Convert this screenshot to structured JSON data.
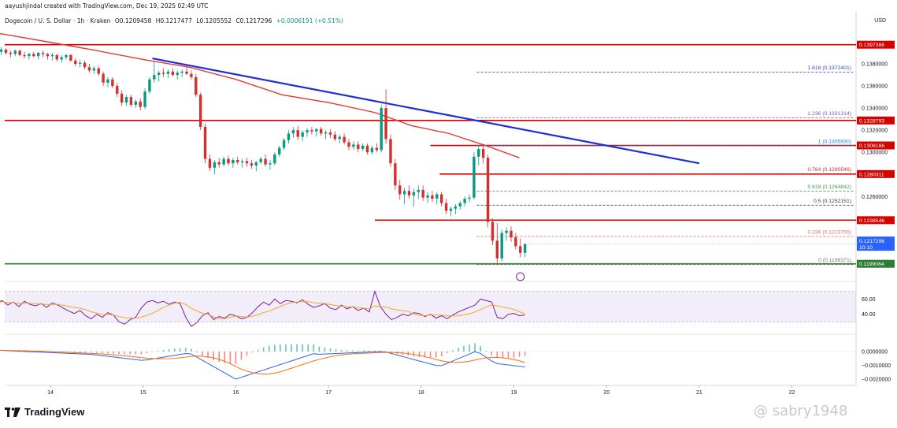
{
  "header": {
    "author": "aayushjindal created with TradingView.com, Dec 19, 2025 02:49 UTC",
    "symbol": "Dogecoin / U. S. Dollar · 1h · Kraken",
    "open": "O0.1209458",
    "high": "H0.1217477",
    "low": "L0.1205552",
    "close": "C0.1217296",
    "change": "+0.0006191 (+0.51%)"
  },
  "currency": "USD",
  "brand": "TradingView",
  "watermark": "@ sabry1948",
  "colors": {
    "bull": "#089981",
    "bear": "#d32f2f",
    "hline": "#d50000",
    "support": "#2e7d32",
    "trend": "#1e2fd6",
    "ma": "#e53935",
    "rsi": "#7b1fa2",
    "rsi_ma": "#f6a623",
    "macd": "#2962ff",
    "signal": "#ff6d00"
  },
  "chart_data": {
    "type": "candlestick",
    "price_ylim": [
      0.1186,
      0.1415
    ],
    "price_ticks": [
      "0.1380000",
      "0.1360000",
      "0.1340000",
      "0.1320000",
      "0.1300000",
      "0.1260000"
    ],
    "x_ticks": [
      "14",
      "15",
      "16",
      "17",
      "18",
      "19",
      "20",
      "21",
      "22"
    ],
    "h_lines": [
      {
        "label": "0.1397386",
        "value": 0.1397386
      },
      {
        "label": "0.1328793",
        "value": 0.1328793
      },
      {
        "label": "0.1306186",
        "value": 0.1306186
      },
      {
        "label": "0.1280311",
        "value": 0.1280311
      },
      {
        "label": "0.1238546",
        "value": 0.1238546
      }
    ],
    "support_line": {
      "label": "0.1199064",
      "value": 0.1199064
    },
    "last_price": {
      "label": "0.1217296",
      "countdown": "10:10",
      "value": 0.1217296
    },
    "fib_levels": [
      {
        "label": "1.618 (0.1372401)",
        "value": 0.1372401
      },
      {
        "label": "1.236 (0.1331314)",
        "value": 0.1331314
      },
      {
        "label": "1 (0.1305930)",
        "value": 0.130593
      },
      {
        "label": "0.764 (0.1280546)",
        "value": 0.1280546
      },
      {
        "label": "0.618 (0.1264842)",
        "value": 0.1264842
      },
      {
        "label": "0.5 (0.1252151)",
        "value": 0.1252151
      },
      {
        "label": "0.236 (0.1223755)",
        "value": 0.1223755
      },
      {
        "label": "0 (0.1198371)",
        "value": 0.1198371
      }
    ],
    "trendline": [
      [
        15.1,
        0.1385
      ],
      [
        21.0,
        0.129
      ]
    ],
    "rsi": {
      "ylim": [
        20,
        80
      ],
      "ticks": [
        "60.00",
        "40.00"
      ],
      "band": [
        30,
        70
      ]
    },
    "macd": {
      "ylim": [
        -0.0024,
        0.0008
      ],
      "ticks": [
        "0.0000000",
        "−0.0010000",
        "−0.0020000"
      ]
    },
    "candles": [
      [
        13.42,
        0.1392,
        0.1394,
        0.1389,
        0.1391
      ],
      [
        13.47,
        0.1391,
        0.1395,
        0.1388,
        0.1393
      ],
      [
        13.52,
        0.1393,
        0.1394,
        0.1388,
        0.139
      ],
      [
        13.57,
        0.139,
        0.1392,
        0.1386,
        0.1389
      ],
      [
        13.62,
        0.1389,
        0.1393,
        0.1387,
        0.1392
      ],
      [
        13.67,
        0.1392,
        0.1393,
        0.1387,
        0.1388
      ],
      [
        13.72,
        0.1388,
        0.1391,
        0.1385,
        0.1387
      ],
      [
        13.77,
        0.1387,
        0.139,
        0.1384,
        0.1389
      ],
      [
        13.82,
        0.1389,
        0.1391,
        0.1386,
        0.1387
      ],
      [
        13.87,
        0.1387,
        0.1391,
        0.1384,
        0.139
      ],
      [
        13.92,
        0.139,
        0.1392,
        0.1386,
        0.1389
      ],
      [
        13.97,
        0.1389,
        0.139,
        0.1384,
        0.1387
      ],
      [
        14.02,
        0.1387,
        0.139,
        0.1383,
        0.1388
      ],
      [
        14.07,
        0.1388,
        0.1389,
        0.1382,
        0.1384
      ],
      [
        14.12,
        0.1384,
        0.1388,
        0.1381,
        0.1386
      ],
      [
        14.17,
        0.1386,
        0.1389,
        0.1384,
        0.1388
      ],
      [
        14.22,
        0.1388,
        0.1389,
        0.1382,
        0.1383
      ],
      [
        14.27,
        0.1383,
        0.1385,
        0.1378,
        0.138
      ],
      [
        14.32,
        0.138,
        0.1384,
        0.1377,
        0.1381
      ],
      [
        14.37,
        0.1381,
        0.1383,
        0.1375,
        0.1377
      ],
      [
        14.42,
        0.1377,
        0.138,
        0.1372,
        0.1374
      ],
      [
        14.47,
        0.1374,
        0.1378,
        0.1371,
        0.1376
      ],
      [
        14.52,
        0.1376,
        0.1378,
        0.1369,
        0.1371
      ],
      [
        14.57,
        0.1371,
        0.1373,
        0.136,
        0.1363
      ],
      [
        14.62,
        0.1363,
        0.1368,
        0.1359,
        0.1366
      ],
      [
        14.67,
        0.1366,
        0.1368,
        0.1358,
        0.136
      ],
      [
        14.72,
        0.136,
        0.1363,
        0.135,
        0.1353
      ],
      [
        14.77,
        0.1353,
        0.1356,
        0.1342,
        0.1345
      ],
      [
        14.82,
        0.1345,
        0.1352,
        0.1342,
        0.135
      ],
      [
        14.87,
        0.135,
        0.1352,
        0.1341,
        0.1343
      ],
      [
        14.92,
        0.1343,
        0.1348,
        0.134,
        0.1346
      ],
      [
        14.97,
        0.1346,
        0.1349,
        0.1338,
        0.1341
      ],
      [
        15.02,
        0.1341,
        0.1358,
        0.1339,
        0.1355
      ],
      [
        15.07,
        0.1355,
        0.1368,
        0.1353,
        0.1366
      ],
      [
        15.12,
        0.1366,
        0.1382,
        0.1363,
        0.137
      ],
      [
        15.17,
        0.137,
        0.1374,
        0.1364,
        0.1372
      ],
      [
        15.22,
        0.1372,
        0.1376,
        0.1368,
        0.1371
      ],
      [
        15.27,
        0.1371,
        0.1375,
        0.1367,
        0.1373
      ],
      [
        15.32,
        0.1373,
        0.1376,
        0.1369,
        0.137
      ],
      [
        15.37,
        0.137,
        0.1374,
        0.1366,
        0.1372
      ],
      [
        15.42,
        0.1372,
        0.1375,
        0.1368,
        0.1373
      ],
      [
        15.47,
        0.1373,
        0.1377,
        0.137,
        0.1371
      ],
      [
        15.52,
        0.1371,
        0.1374,
        0.1366,
        0.1368
      ],
      [
        15.57,
        0.1368,
        0.1371,
        0.135,
        0.1352
      ],
      [
        15.62,
        0.1352,
        0.1354,
        0.132,
        0.1323
      ],
      [
        15.67,
        0.1323,
        0.1326,
        0.129,
        0.1294
      ],
      [
        15.72,
        0.1294,
        0.1298,
        0.1283,
        0.1286
      ],
      [
        15.77,
        0.1286,
        0.1293,
        0.128,
        0.1291
      ],
      [
        15.82,
        0.1291,
        0.1295,
        0.1286,
        0.1289
      ],
      [
        15.87,
        0.1289,
        0.1296,
        0.1287,
        0.1294
      ],
      [
        15.92,
        0.1294,
        0.1297,
        0.1288,
        0.129
      ],
      [
        15.97,
        0.129,
        0.1295,
        0.1286,
        0.1293
      ],
      [
        16.02,
        0.1293,
        0.1296,
        0.1289,
        0.1291
      ],
      [
        16.07,
        0.1291,
        0.1294,
        0.1286,
        0.1292
      ],
      [
        16.12,
        0.1292,
        0.1295,
        0.1287,
        0.129
      ],
      [
        16.17,
        0.129,
        0.1293,
        0.1285,
        0.1288
      ],
      [
        16.22,
        0.1288,
        0.1292,
        0.1283,
        0.1291
      ],
      [
        16.27,
        0.1291,
        0.1296,
        0.1289,
        0.1294
      ],
      [
        16.32,
        0.1294,
        0.1298,
        0.1287,
        0.1289
      ],
      [
        16.37,
        0.1289,
        0.1293,
        0.1284,
        0.129
      ],
      [
        16.42,
        0.129,
        0.13,
        0.1288,
        0.1298
      ],
      [
        16.47,
        0.1298,
        0.1306,
        0.1296,
        0.1304
      ],
      [
        16.52,
        0.1304,
        0.1313,
        0.1302,
        0.1311
      ],
      [
        16.57,
        0.1311,
        0.132,
        0.1308,
        0.1317
      ],
      [
        16.62,
        0.1317,
        0.1323,
        0.1313,
        0.132
      ],
      [
        16.67,
        0.132,
        0.1324,
        0.1311,
        0.1314
      ],
      [
        16.72,
        0.1314,
        0.132,
        0.131,
        0.1318
      ],
      [
        16.77,
        0.1318,
        0.1322,
        0.1314,
        0.132
      ],
      [
        16.82,
        0.132,
        0.1323,
        0.1316,
        0.1319
      ],
      [
        16.87,
        0.1319,
        0.1322,
        0.1314,
        0.1321
      ],
      [
        16.92,
        0.1321,
        0.1323,
        0.1315,
        0.1317
      ],
      [
        16.97,
        0.1317,
        0.132,
        0.1312,
        0.1318
      ],
      [
        17.02,
        0.1318,
        0.1321,
        0.1313,
        0.1316
      ],
      [
        17.07,
        0.1316,
        0.1319,
        0.131,
        0.1312
      ],
      [
        17.12,
        0.1312,
        0.1316,
        0.1308,
        0.1314
      ],
      [
        17.17,
        0.1314,
        0.1317,
        0.1307,
        0.1309
      ],
      [
        17.22,
        0.1309,
        0.1312,
        0.1302,
        0.1305
      ],
      [
        17.27,
        0.1305,
        0.131,
        0.1302,
        0.1307
      ],
      [
        17.32,
        0.1307,
        0.131,
        0.13,
        0.1303
      ],
      [
        17.37,
        0.1303,
        0.1308,
        0.1301,
        0.1306
      ],
      [
        17.42,
        0.1306,
        0.1308,
        0.1298,
        0.13
      ],
      [
        17.47,
        0.13,
        0.1306,
        0.1298,
        0.1304
      ],
      [
        17.52,
        0.1304,
        0.1308,
        0.13,
        0.1302
      ],
      [
        17.57,
        0.1302,
        0.1343,
        0.13,
        0.134
      ],
      [
        17.62,
        0.134,
        0.1357,
        0.1308,
        0.1312
      ],
      [
        17.67,
        0.1312,
        0.1316,
        0.1287,
        0.129
      ],
      [
        17.72,
        0.129,
        0.1294,
        0.1266,
        0.127
      ],
      [
        17.77,
        0.127,
        0.1275,
        0.1257,
        0.1262
      ],
      [
        17.82,
        0.1262,
        0.1268,
        0.1253,
        0.1265
      ],
      [
        17.87,
        0.1265,
        0.127,
        0.1258,
        0.1261
      ],
      [
        17.92,
        0.1261,
        0.1267,
        0.1251,
        0.1264
      ],
      [
        17.97,
        0.1264,
        0.127,
        0.1258,
        0.1266
      ],
      [
        18.02,
        0.1266,
        0.127,
        0.1256,
        0.1259
      ],
      [
        18.07,
        0.1259,
        0.1264,
        0.1254,
        0.1261
      ],
      [
        18.12,
        0.1261,
        0.1265,
        0.1255,
        0.1258
      ],
      [
        18.17,
        0.1258,
        0.1264,
        0.1253,
        0.1262
      ],
      [
        18.22,
        0.1262,
        0.1264,
        0.1251,
        0.1254
      ],
      [
        18.27,
        0.1254,
        0.1258,
        0.1244,
        0.1247
      ],
      [
        18.32,
        0.1247,
        0.1251,
        0.1242,
        0.1249
      ],
      [
        18.37,
        0.1249,
        0.1253,
        0.1244,
        0.1251
      ],
      [
        18.42,
        0.1251,
        0.1256,
        0.1248,
        0.1254
      ],
      [
        18.47,
        0.1254,
        0.126,
        0.1251,
        0.1258
      ],
      [
        18.52,
        0.1258,
        0.1262,
        0.1255,
        0.1259
      ],
      [
        18.57,
        0.1259,
        0.13,
        0.1257,
        0.1296
      ],
      [
        18.62,
        0.1296,
        0.1306,
        0.1288,
        0.1303
      ],
      [
        18.67,
        0.1303,
        0.1307,
        0.129,
        0.1295
      ],
      [
        18.72,
        0.1295,
        0.1298,
        0.1232,
        0.1237
      ],
      [
        18.77,
        0.1237,
        0.124,
        0.1216,
        0.122
      ],
      [
        18.82,
        0.122,
        0.1236,
        0.1198,
        0.1204
      ],
      [
        18.87,
        0.1204,
        0.123,
        0.1201,
        0.1227
      ],
      [
        18.92,
        0.1227,
        0.1232,
        0.122,
        0.1229
      ],
      [
        18.97,
        0.1229,
        0.1233,
        0.1219,
        0.1223
      ],
      [
        19.02,
        0.1223,
        0.1227,
        0.1212,
        0.1215
      ],
      [
        19.07,
        0.1215,
        0.1222,
        0.1205,
        0.1209
      ],
      [
        19.12,
        0.1209,
        0.1217,
        0.1205,
        0.1217
      ]
    ]
  }
}
